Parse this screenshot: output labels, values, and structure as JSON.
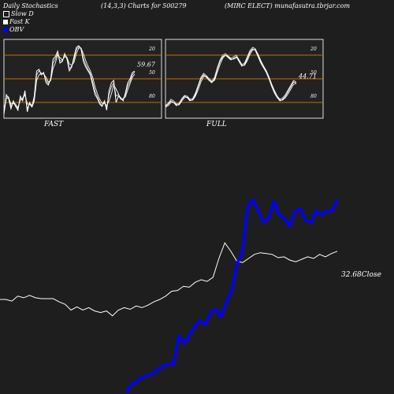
{
  "header": {
    "title": "Daily Stochastics",
    "params": "(14,3,3) Charts for 500279",
    "source": "(MIRC ELECT) munafasutra.tbrjar.com"
  },
  "legend": [
    {
      "label": "Slow  D",
      "color": "#ffffff",
      "outline": true
    },
    {
      "label": "Fast K",
      "color": "#ffffff",
      "outline": false
    },
    {
      "label": "OBV",
      "color": "#0000ff",
      "outline": false
    }
  ],
  "colors": {
    "background": "#1e1e1e",
    "panel": "#222222",
    "level_line": "#c07000",
    "obv": "#0000ff",
    "price": "#ffffff"
  },
  "chart_data": [
    {
      "type": "line",
      "panel": "FAST",
      "ylim": [
        0,
        100
      ],
      "levels": [
        20,
        50,
        80
      ],
      "tick_labels": [
        "80",
        "50",
        "20"
      ],
      "last_value_label": "59.67",
      "series": [
        {
          "name": "Fast K",
          "values": [
            5,
            30,
            25,
            12,
            22,
            15,
            10,
            28,
            22,
            35,
            8,
            20,
            15,
            28,
            60,
            62,
            55,
            58,
            45,
            42,
            50,
            75,
            78,
            85,
            70,
            72,
            82,
            75,
            60,
            65,
            78,
            90,
            92,
            88,
            72,
            65,
            60,
            55,
            42,
            30,
            25,
            18,
            15,
            22,
            10,
            35,
            45,
            48,
            20,
            28,
            25,
            22,
            32,
            45,
            50,
            58,
            59.67
          ]
        },
        {
          "name": "Slow  D",
          "values": [
            6,
            25,
            26,
            18,
            19,
            16,
            14,
            23,
            24,
            30,
            18,
            18,
            14,
            22,
            48,
            55,
            57,
            56,
            52,
            46,
            48,
            63,
            70,
            80,
            77,
            74,
            78,
            77,
            69,
            67,
            71,
            82,
            89,
            89,
            82,
            73,
            66,
            60,
            52,
            40,
            31,
            24,
            19,
            19,
            16,
            22,
            31,
            42,
            37,
            31,
            24,
            25,
            27,
            36,
            44,
            52,
            56
          ]
        },
        {
          "name": "Fast K (shadow)",
          "values": [
            8,
            28,
            27,
            15,
            20,
            18,
            12,
            25,
            25,
            32,
            12,
            19,
            16,
            25,
            55,
            60,
            57,
            57,
            48,
            44,
            48,
            70,
            75,
            82,
            73,
            73,
            80,
            77,
            63,
            66,
            75,
            87,
            91,
            89,
            76,
            68,
            62,
            57,
            46,
            34,
            27,
            20,
            16,
            20,
            13,
            30,
            40,
            45,
            28,
            30,
            26,
            23,
            30,
            41,
            47,
            55,
            59
          ]
        }
      ]
    },
    {
      "type": "line",
      "panel": "FULL",
      "ylim": [
        0,
        100
      ],
      "levels": [
        20,
        50,
        80
      ],
      "tick_labels": [
        "80",
        "50",
        "20"
      ],
      "last_value_label": "44.71",
      "series": [
        {
          "name": "Fast K",
          "values": [
            15,
            18,
            22,
            20,
            16,
            18,
            24,
            28,
            26,
            22,
            24,
            30,
            40,
            50,
            55,
            52,
            48,
            45,
            50,
            62,
            72,
            78,
            80,
            77,
            74,
            76,
            78,
            72,
            66,
            68,
            76,
            84,
            88,
            86,
            78,
            70,
            64,
            58,
            50,
            40,
            32,
            26,
            22,
            24,
            28,
            34,
            40,
            46,
            44.71
          ]
        },
        {
          "name": "Slow  D",
          "values": [
            14,
            16,
            20,
            20,
            17,
            17,
            22,
            26,
            27,
            23,
            23,
            28,
            36,
            46,
            53,
            53,
            50,
            46,
            48,
            58,
            68,
            76,
            80,
            78,
            75,
            75,
            77,
            74,
            68,
            67,
            73,
            81,
            87,
            87,
            81,
            73,
            66,
            60,
            52,
            43,
            35,
            28,
            23,
            23,
            26,
            31,
            37,
            43,
            44
          ]
        },
        {
          "name": "Fast K (shadow)",
          "values": [
            16,
            19,
            24,
            22,
            18,
            19,
            25,
            29,
            28,
            24,
            25,
            32,
            42,
            52,
            57,
            54,
            50,
            47,
            52,
            64,
            74,
            80,
            82,
            79,
            76,
            78,
            80,
            74,
            68,
            70,
            78,
            86,
            90,
            88,
            80,
            72,
            66,
            60,
            52,
            42,
            34,
            28,
            24,
            26,
            30,
            36,
            42,
            48,
            46
          ]
        }
      ]
    },
    {
      "type": "line",
      "panel": "OBV / Close",
      "last_value_label": "32.68Close",
      "series": [
        {
          "name": "Close",
          "values": [
            26.8,
            26.8,
            26.6,
            27.2,
            27.0,
            27.3,
            27.0,
            26.9,
            26.9,
            26.9,
            26.5,
            26.2,
            25.5,
            25.9,
            25.5,
            25.8,
            25.4,
            25.2,
            25.4,
            24.8,
            25.5,
            25.8,
            25.6,
            26.0,
            25.8,
            26.1,
            26.5,
            26.8,
            27.2,
            27.8,
            27.9,
            28.4,
            28.3,
            28.9,
            29.2,
            29.0,
            29.5,
            31.8,
            33.7,
            32.7,
            31.5,
            31.3,
            31.8,
            32.3,
            32.5,
            32.4,
            32.3,
            31.9,
            32.0,
            31.6,
            31.4,
            31.7,
            32.0,
            31.8,
            32.3,
            32.0,
            32.4,
            32.68
          ]
        },
        {
          "name": "OBV",
          "values": [
            -5.0,
            -4.6,
            -4.4,
            -4.2,
            -4.1,
            -4.0,
            -3.8,
            -3.6,
            -3.5,
            -3.5,
            -2.0,
            -2.4,
            -2.0,
            -1.5,
            -1.2,
            -1.4,
            -0.8,
            -0.6,
            -1.0,
            -0.2,
            0.4,
            1.8,
            2.4,
            4.8,
            5.2,
            4.6,
            4.0,
            4.2,
            5.1,
            4.4,
            4.2,
            3.8,
            4.6,
            4.7,
            4.1,
            4.0,
            4.6,
            4.4,
            4.6,
            4.6,
            5.2
          ]
        }
      ]
    }
  ],
  "panels": [
    {
      "label": "FAST"
    },
    {
      "label": "FULL"
    }
  ]
}
